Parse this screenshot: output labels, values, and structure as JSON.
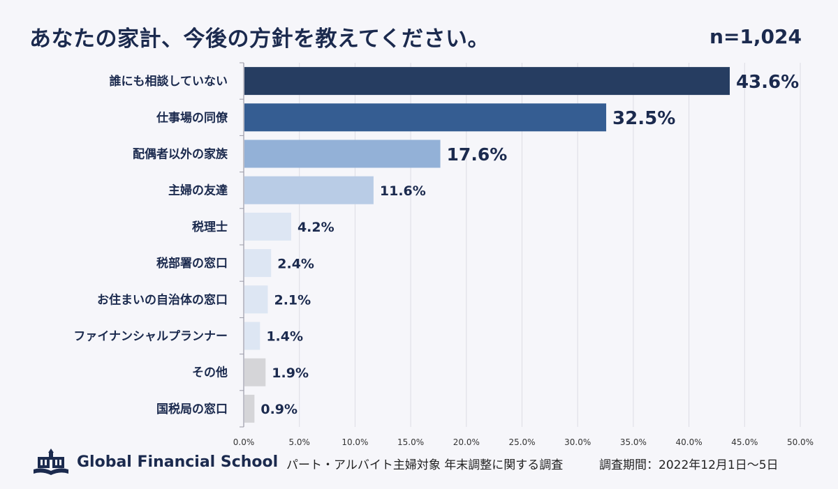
{
  "header": {
    "title": "あなたの家計、今後の方針を教えてください。",
    "sample_size": "n=1,024"
  },
  "chart_data": {
    "type": "bar",
    "orientation": "horizontal",
    "title": "あなたの家計、今後の方針を教えてください。",
    "xlabel": "",
    "ylabel": "",
    "xlim": [
      0,
      50
    ],
    "grid": true,
    "categories": [
      "誰にも相談していない",
      "仕事場の同僚",
      "配偶者以外の家族",
      "主婦の友達",
      "税理士",
      "税部署の窓口",
      "お住まいの自治体の窓口",
      "ファイナンシャルプランナー",
      "その他",
      "国税局の窓口"
    ],
    "values": [
      43.6,
      32.5,
      17.6,
      11.6,
      4.2,
      2.4,
      2.1,
      1.4,
      1.9,
      0.9
    ],
    "value_labels": [
      "43.6%",
      "32.5%",
      "17.6%",
      "11.6%",
      "4.2%",
      "2.4%",
      "2.1%",
      "1.4%",
      "1.9%",
      "0.9%"
    ],
    "bar_colors": [
      "#263d61",
      "#355d92",
      "#93b1d7",
      "#b9cce6",
      "#dde6f3",
      "#dde6f3",
      "#dde6f3",
      "#dde6f3",
      "#d5d5d8",
      "#d5d5d8"
    ],
    "x_ticks": [
      "0.0%",
      "5.0%",
      "10.0%",
      "15.0%",
      "20.0%",
      "25.0%",
      "30.0%",
      "35.0%",
      "40.0%",
      "45.0%",
      "50.0%"
    ]
  },
  "footer": {
    "logo_text": "Global Financial School",
    "logo_icon": "school-building-icon",
    "note": "パート・アルバイト主婦対象 年末調整に関する調査",
    "period": "調査期間：2022年12月1日〜5日"
  },
  "colors": {
    "navy": "#1b2a4e",
    "grid": "#dcdce4",
    "axis": "#9a9aa6"
  }
}
